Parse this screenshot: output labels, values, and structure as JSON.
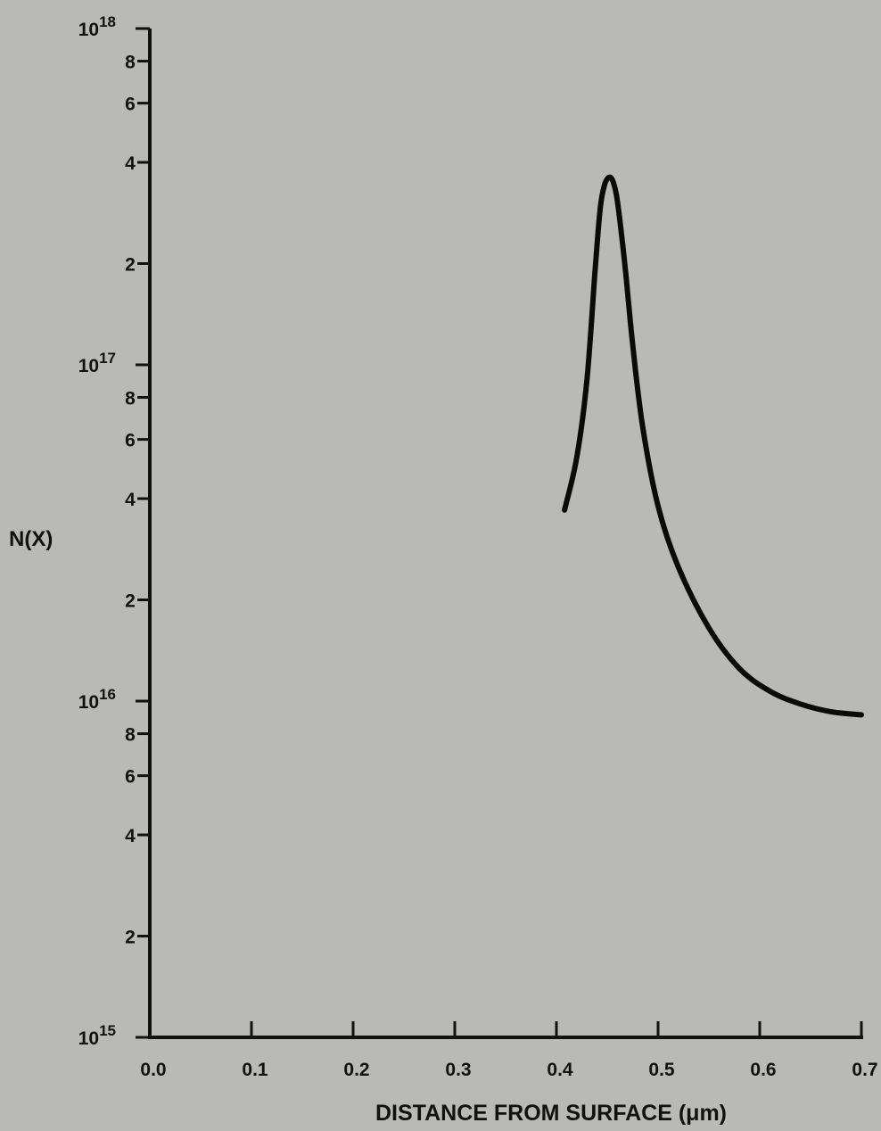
{
  "chart_data": {
    "type": "line",
    "title": "",
    "xlabel": "DISTANCE FROM SURFACE (μm)",
    "ylabel": "N(X)",
    "x_scale": "linear",
    "y_scale": "log",
    "xlim": [
      0.0,
      0.7
    ],
    "ylim": [
      1000000000000000.0,
      1e+18
    ],
    "grid": false,
    "x_ticks": [
      0.0,
      0.1,
      0.2,
      0.3,
      0.4,
      0.5,
      0.6,
      0.7
    ],
    "x_tick_labels": [
      "0.0",
      "0.1",
      "0.2",
      "0.3",
      "0.4",
      "0.5",
      "0.6",
      "0.7"
    ],
    "y_decade_ticks": [
      {
        "value": 1000000000000000.0,
        "base": "10",
        "exp": "15"
      },
      {
        "value": 1e+16,
        "base": "10",
        "exp": "16"
      },
      {
        "value": 1e+17,
        "base": "10",
        "exp": "17"
      },
      {
        "value": 1e+18,
        "base": "10",
        "exp": "18"
      }
    ],
    "y_minor_ticks": [
      {
        "value": 2000000000000000.0,
        "label": "2"
      },
      {
        "value": 4000000000000000.0,
        "label": "4"
      },
      {
        "value": 6000000000000000.0,
        "label": "6"
      },
      {
        "value": 8000000000000000.0,
        "label": "8"
      },
      {
        "value": 2e+16,
        "label": "2"
      },
      {
        "value": 4e+16,
        "label": "4"
      },
      {
        "value": 6e+16,
        "label": "6"
      },
      {
        "value": 8e+16,
        "label": "8"
      },
      {
        "value": 2e+17,
        "label": "2"
      },
      {
        "value": 4e+17,
        "label": "4"
      },
      {
        "value": 6e+17,
        "label": "6"
      },
      {
        "value": 8e+17,
        "label": "8"
      }
    ],
    "series": [
      {
        "x": [
          0.408,
          0.42,
          0.43,
          0.438,
          0.443,
          0.447,
          0.451,
          0.455,
          0.459,
          0.463,
          0.468,
          0.475,
          0.485,
          0.5,
          0.52,
          0.55,
          0.58,
          0.61,
          0.64,
          0.67,
          0.7
        ],
        "y": [
          3.7e+16,
          5.3e+16,
          9e+16,
          1.9e+17,
          2.9e+17,
          3.4e+17,
          3.6e+17,
          3.55e+17,
          3.2e+17,
          2.6e+17,
          1.9e+17,
          1.15e+17,
          6.5e+16,
          3.8e+16,
          2.5e+16,
          1.65e+16,
          1.25e+16,
          1.07e+16,
          9800000000000000.0,
          9300000000000000.0,
          9100000000000000.0
        ],
        "color": "#0a0a0a"
      }
    ]
  }
}
